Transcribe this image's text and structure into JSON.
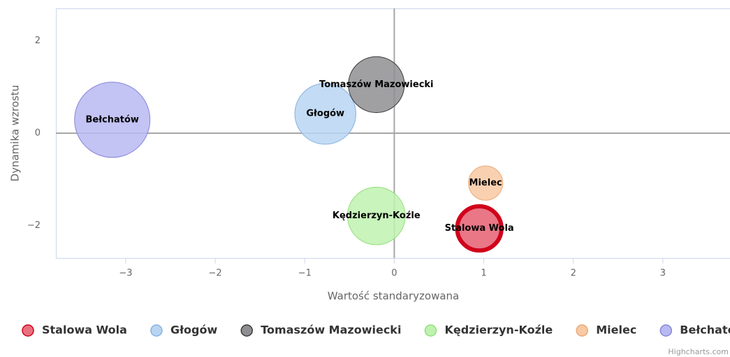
{
  "chart_data": {
    "type": "bubble",
    "x_label": "Wartość standaryzowana",
    "y_label": "Dynamika wzrostu",
    "credits": "Highcharts.com",
    "xlim": [
      -3.78,
      3.75
    ],
    "ylim": [
      -2.7,
      2.7
    ],
    "xticks": [
      {
        "value": -3,
        "label": "−3"
      },
      {
        "value": -2,
        "label": "−2"
      },
      {
        "value": -1,
        "label": "−1"
      },
      0,
      1,
      2,
      3
    ],
    "yticks": [
      {
        "value": -2,
        "label": "−2"
      },
      0,
      2
    ],
    "series": [
      {
        "name": "Stalowa Wola",
        "color": "#e8707f",
        "border": "#d0021b",
        "x": [
          0.95
        ],
        "values": [
          -2.06
        ],
        "sizes": [
          10
        ]
      },
      {
        "name": "Głogów",
        "color": "#b9d5f2",
        "border": "#86b2e0",
        "x": [
          -0.77
        ],
        "values": [
          0.42
        ],
        "sizes": [
          19
        ]
      },
      {
        "name": "Tomaszów Mazowiecki",
        "color": "#8f8f93",
        "border": "#3a3a3a",
        "x": [
          -0.2
        ],
        "values": [
          1.05
        ],
        "sizes": [
          16
        ]
      },
      {
        "name": "Kędzierzyn-Koźle",
        "color": "#bff2b0",
        "border": "#90e07a",
        "x": [
          -0.2
        ],
        "values": [
          -1.79
        ],
        "sizes": [
          17
        ]
      },
      {
        "name": "Mielec",
        "color": "#f8c9a3",
        "border": "#eba874",
        "x": [
          1.02
        ],
        "values": [
          -1.08
        ],
        "sizes": [
          6
        ]
      },
      {
        "name": "Bełchatów",
        "color": "#b9b9f2",
        "border": "#8585d8",
        "x": [
          -3.15
        ],
        "values": [
          0.29
        ],
        "sizes": [
          29
        ]
      }
    ]
  }
}
